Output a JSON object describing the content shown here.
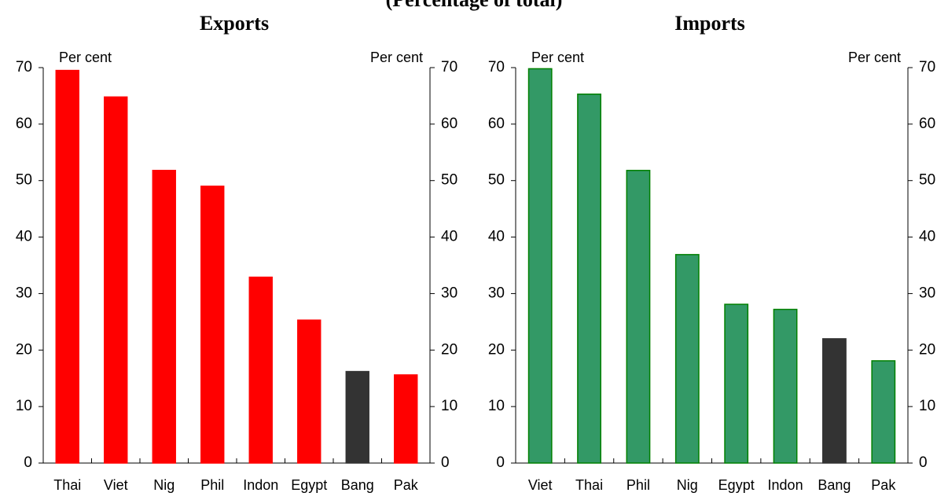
{
  "page": {
    "title": "(Percentage of total)"
  },
  "chart_data": [
    {
      "type": "bar",
      "title": "Exports",
      "unit_left": "Per cent",
      "unit_right": "Per cent",
      "ylim": [
        0,
        70
      ],
      "yticks": [
        0,
        10,
        20,
        30,
        40,
        50,
        60,
        70
      ],
      "categories": [
        "Thai",
        "Viet",
        "Nig",
        "Phil",
        "Indon",
        "Egypt",
        "Bang",
        "Pak"
      ],
      "values": [
        69.5,
        64.8,
        51.8,
        49.0,
        32.9,
        25.3,
        16.2,
        15.6
      ],
      "bar_color": "#ff0000",
      "bar_stroke": "#ff0000",
      "highlight_category": "Bang",
      "highlight_color": "#333333",
      "grid": false
    },
    {
      "type": "bar",
      "title": "Imports",
      "unit_left": "Per cent",
      "unit_right": "Per cent",
      "ylim": [
        0,
        70
      ],
      "yticks": [
        0,
        10,
        20,
        30,
        40,
        50,
        60,
        70
      ],
      "categories": [
        "Viet",
        "Thai",
        "Phil",
        "Nig",
        "Egypt",
        "Indon",
        "Bang",
        "Pak"
      ],
      "values": [
        69.8,
        65.3,
        51.8,
        36.9,
        28.1,
        27.2,
        22.0,
        18.1
      ],
      "bar_color": "#339966",
      "bar_stroke": "#008000",
      "highlight_category": "Bang",
      "highlight_color": "#333333",
      "grid": false
    }
  ]
}
